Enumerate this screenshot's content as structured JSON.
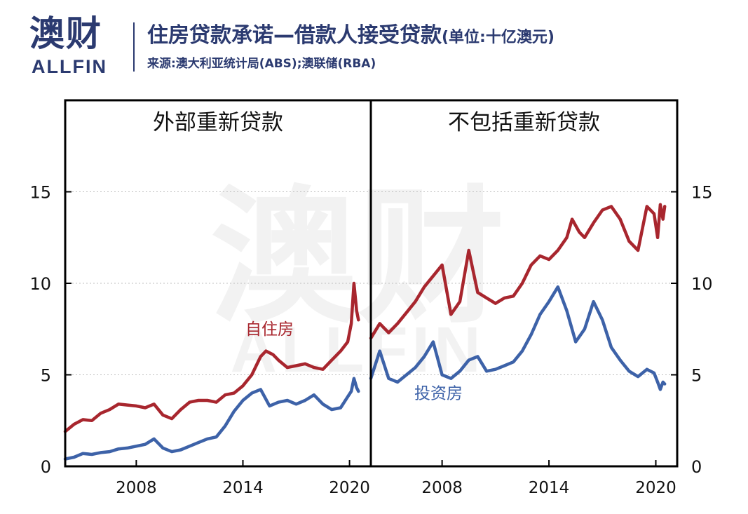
{
  "logo": {
    "cn": "澳财",
    "en": "ALLFIN"
  },
  "header": {
    "title": "住房贷款承诺—借款人接受贷款",
    "unit": "(单位:十亿澳元)",
    "source": "来源:澳大利亚统计局(ABS);澳联储(RBA)"
  },
  "watermark": {
    "cn": "澳财",
    "en": "ALLFIN"
  },
  "colors": {
    "owner": "#a8262e",
    "investor": "#3d62a8",
    "brand": "#2b3a70"
  },
  "chart_data": [
    {
      "type": "line",
      "title": "外部重新贷款",
      "ylim": [
        0,
        20
      ],
      "yticks": [
        0,
        5,
        10,
        15
      ],
      "xlim": [
        2004,
        2021.2
      ],
      "xticks": [
        2008,
        2014,
        2020
      ],
      "grid": "horizontal dotted",
      "annotations": [
        {
          "text": "自住房",
          "series": "自住房",
          "x": 2015.5,
          "y": 7.2
        }
      ],
      "series": [
        {
          "name": "自住房",
          "color": "#a8262e",
          "x": [
            2004.0,
            2004.5,
            2005.0,
            2005.5,
            2006.0,
            2006.5,
            2007.0,
            2007.5,
            2008.0,
            2008.5,
            2009.0,
            2009.5,
            2010.0,
            2010.5,
            2011.0,
            2011.5,
            2012.0,
            2012.5,
            2013.0,
            2013.5,
            2014.0,
            2014.5,
            2015.0,
            2015.3,
            2015.7,
            2016.0,
            2016.5,
            2017.0,
            2017.5,
            2018.0,
            2018.5,
            2019.0,
            2019.5,
            2019.9,
            2020.1,
            2020.25,
            2020.4,
            2020.5
          ],
          "y": [
            1.9,
            2.3,
            2.55,
            2.5,
            2.9,
            3.1,
            3.4,
            3.35,
            3.3,
            3.2,
            3.4,
            2.8,
            2.6,
            3.1,
            3.5,
            3.6,
            3.6,
            3.5,
            3.9,
            4.0,
            4.4,
            5.0,
            6.0,
            6.3,
            6.1,
            5.8,
            5.4,
            5.5,
            5.6,
            5.4,
            5.3,
            5.8,
            6.3,
            6.8,
            7.8,
            10.0,
            8.5,
            8.0
          ]
        },
        {
          "name": "投资房",
          "color": "#3d62a8",
          "x": [
            2004.0,
            2004.5,
            2005.0,
            2005.5,
            2006.0,
            2006.5,
            2007.0,
            2007.5,
            2008.0,
            2008.5,
            2009.0,
            2009.5,
            2010.0,
            2010.5,
            2011.0,
            2011.5,
            2012.0,
            2012.5,
            2013.0,
            2013.5,
            2014.0,
            2014.5,
            2015.0,
            2015.5,
            2016.0,
            2016.5,
            2017.0,
            2017.5,
            2018.0,
            2018.5,
            2019.0,
            2019.5,
            2019.9,
            2020.1,
            2020.25,
            2020.4,
            2020.5
          ],
          "y": [
            0.4,
            0.5,
            0.7,
            0.65,
            0.75,
            0.8,
            0.95,
            1.0,
            1.1,
            1.2,
            1.5,
            1.0,
            0.8,
            0.9,
            1.1,
            1.3,
            1.5,
            1.6,
            2.2,
            3.0,
            3.6,
            4.0,
            4.2,
            3.3,
            3.5,
            3.6,
            3.4,
            3.6,
            3.9,
            3.4,
            3.1,
            3.2,
            3.8,
            4.1,
            4.8,
            4.3,
            4.1
          ]
        }
      ]
    },
    {
      "type": "line",
      "title": "不包括重新贷款",
      "ylim": [
        0,
        20
      ],
      "yticks": [
        0,
        5,
        10,
        15
      ],
      "xlim": [
        2004,
        2021.2
      ],
      "xticks": [
        2008,
        2014,
        2020
      ],
      "grid": "horizontal dotted",
      "annotations": [
        {
          "text": "投资房",
          "series": "投资房",
          "x": 2007.8,
          "y": 3.7
        }
      ],
      "series": [
        {
          "name": "自住房",
          "color": "#a8262e",
          "x": [
            2004.0,
            2004.5,
            2005.0,
            2005.5,
            2006.0,
            2006.5,
            2007.0,
            2007.5,
            2008.0,
            2008.5,
            2009.0,
            2009.5,
            2010.0,
            2010.5,
            2011.0,
            2011.5,
            2012.0,
            2012.5,
            2013.0,
            2013.5,
            2014.0,
            2014.5,
            2015.0,
            2015.3,
            2015.7,
            2016.0,
            2016.5,
            2017.0,
            2017.5,
            2018.0,
            2018.5,
            2019.0,
            2019.5,
            2019.9,
            2020.1,
            2020.25,
            2020.4,
            2020.5
          ],
          "y": [
            7.0,
            7.8,
            7.3,
            7.8,
            8.4,
            9.0,
            9.8,
            10.4,
            11.0,
            8.3,
            9.0,
            11.8,
            9.5,
            9.2,
            8.9,
            9.2,
            9.3,
            10.0,
            11.0,
            11.5,
            11.3,
            11.8,
            12.5,
            13.5,
            12.8,
            12.5,
            13.3,
            14.0,
            14.2,
            13.5,
            12.3,
            11.8,
            14.2,
            13.8,
            12.5,
            14.3,
            13.5,
            14.2
          ]
        },
        {
          "name": "投资房",
          "color": "#3d62a8",
          "x": [
            2004.0,
            2004.5,
            2005.0,
            2005.5,
            2006.0,
            2006.5,
            2007.0,
            2007.5,
            2008.0,
            2008.5,
            2009.0,
            2009.5,
            2010.0,
            2010.5,
            2011.0,
            2011.5,
            2012.0,
            2012.5,
            2013.0,
            2013.5,
            2014.0,
            2014.5,
            2015.0,
            2015.5,
            2016.0,
            2016.5,
            2017.0,
            2017.5,
            2018.0,
            2018.5,
            2019.0,
            2019.5,
            2019.9,
            2020.1,
            2020.25,
            2020.4,
            2020.5
          ],
          "y": [
            4.8,
            6.3,
            4.8,
            4.6,
            5.0,
            5.4,
            6.0,
            6.8,
            5.0,
            4.8,
            5.2,
            5.8,
            6.0,
            5.2,
            5.3,
            5.5,
            5.7,
            6.3,
            7.2,
            8.3,
            9.0,
            9.8,
            8.5,
            6.8,
            7.5,
            9.0,
            8.0,
            6.5,
            5.8,
            5.2,
            4.9,
            5.3,
            5.1,
            4.6,
            4.2,
            4.6,
            4.5
          ]
        }
      ]
    }
  ]
}
